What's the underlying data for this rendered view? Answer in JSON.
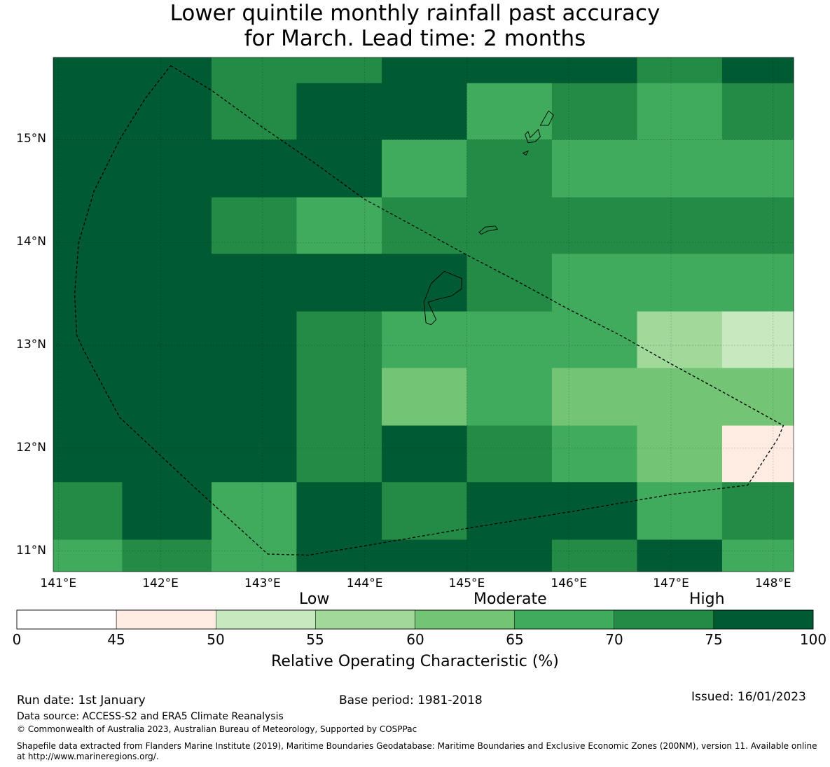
{
  "header": {
    "title_line1": "Lower quintile monthly rainfall past accuracy",
    "title_line2": "for March. Lead time: 2 months"
  },
  "map": {
    "lat_labels": [
      "15°N",
      "14°N",
      "13°N",
      "12°N",
      "11°N"
    ],
    "lon_labels": [
      "141°E",
      "142°E",
      "143°E",
      "144°E",
      "145°E",
      "146°E",
      "147°E",
      "148°E"
    ],
    "lat_values": [
      15,
      14,
      13,
      12,
      11
    ],
    "lon_values": [
      141,
      142,
      143,
      144,
      145,
      146,
      147,
      148
    ],
    "lon_range": [
      140.95,
      148.2
    ],
    "lat_range": [
      10.8,
      15.8
    ],
    "grid_lon_edges": [
      140.95,
      141.625,
      142.5,
      143.333,
      144.167,
      145.0,
      145.833,
      146.667,
      147.5,
      148.2
    ],
    "grid_lat_edges": [
      15.8,
      15.55,
      15.0,
      14.44,
      13.89,
      13.33,
      12.78,
      12.22,
      11.67,
      11.11,
      10.8
    ],
    "roc_category_rows": [
      [
        7,
        7,
        6,
        6,
        7,
        7,
        7,
        6,
        7
      ],
      [
        7,
        7,
        6,
        7,
        7,
        5,
        6,
        5,
        6
      ],
      [
        7,
        7,
        7,
        7,
        5,
        6,
        5,
        5,
        5
      ],
      [
        7,
        7,
        6,
        5,
        6,
        6,
        6,
        6,
        6
      ],
      [
        7,
        7,
        7,
        7,
        7,
        6,
        5,
        5,
        5
      ],
      [
        7,
        7,
        7,
        6,
        5,
        5,
        5,
        3,
        2
      ],
      [
        7,
        7,
        7,
        6,
        4,
        5,
        4,
        4,
        4
      ],
      [
        7,
        7,
        7,
        6,
        7,
        6,
        5,
        4,
        1
      ],
      [
        6,
        7,
        5,
        7,
        6,
        7,
        7,
        5,
        6
      ],
      [
        5,
        6,
        5,
        7,
        7,
        7,
        6,
        7,
        5
      ]
    ],
    "eez_boundary_lonlat": [
      [
        142.1,
        15.72
      ],
      [
        142.5,
        15.48
      ],
      [
        143.0,
        15.12
      ],
      [
        143.5,
        14.78
      ],
      [
        144.0,
        14.42
      ],
      [
        144.5,
        14.15
      ],
      [
        145.0,
        13.88
      ],
      [
        145.5,
        13.62
      ],
      [
        146.0,
        13.35
      ],
      [
        146.5,
        13.1
      ],
      [
        147.0,
        12.82
      ],
      [
        147.5,
        12.55
      ],
      [
        148.1,
        12.22
      ],
      [
        148.05,
        12.1
      ],
      [
        147.75,
        11.64
      ],
      [
        147.0,
        11.55
      ],
      [
        146.0,
        11.38
      ],
      [
        145.0,
        11.22
      ],
      [
        144.0,
        11.05
      ],
      [
        143.45,
        10.96
      ],
      [
        143.05,
        10.97
      ],
      [
        142.3,
        11.65
      ],
      [
        141.6,
        12.3
      ],
      [
        141.25,
        12.95
      ],
      [
        141.18,
        13.1
      ],
      [
        141.16,
        13.5
      ],
      [
        141.2,
        14.0
      ],
      [
        141.35,
        14.5
      ],
      [
        141.6,
        15.0
      ],
      [
        141.85,
        15.4
      ],
      [
        142.1,
        15.72
      ]
    ],
    "islands_lonlat": [
      [
        [
          144.65,
          13.6
        ],
        [
          144.78,
          13.72
        ],
        [
          144.95,
          13.65
        ],
        [
          144.95,
          13.55
        ],
        [
          144.85,
          13.48
        ],
        [
          144.72,
          13.45
        ],
        [
          144.62,
          13.42
        ],
        [
          144.7,
          13.25
        ],
        [
          144.65,
          13.2
        ],
        [
          144.6,
          13.22
        ],
        [
          144.58,
          13.42
        ],
        [
          144.65,
          13.6
        ]
      ],
      [
        [
          145.12,
          14.1
        ],
        [
          145.18,
          14.15
        ],
        [
          145.28,
          14.16
        ],
        [
          145.3,
          14.13
        ],
        [
          145.2,
          14.11
        ],
        [
          145.14,
          14.08
        ],
        [
          145.12,
          14.1
        ]
      ],
      [
        [
          145.62,
          15.02
        ],
        [
          145.7,
          15.1
        ],
        [
          145.72,
          15.03
        ],
        [
          145.67,
          14.98
        ],
        [
          145.6,
          14.97
        ],
        [
          145.57,
          15.05
        ],
        [
          145.6,
          15.08
        ],
        [
          145.62,
          15.02
        ]
      ],
      [
        [
          145.72,
          15.14
        ],
        [
          145.8,
          15.28
        ],
        [
          145.85,
          15.24
        ],
        [
          145.8,
          15.14
        ],
        [
          145.72,
          15.14
        ]
      ],
      [
        [
          145.55,
          14.87
        ],
        [
          145.6,
          14.89
        ],
        [
          145.58,
          14.85
        ],
        [
          145.55,
          14.87
        ]
      ]
    ]
  },
  "colorbar": {
    "category_labels": [
      "Low",
      "Moderate",
      "High"
    ],
    "ticks": [
      "0",
      "45",
      "50",
      "55",
      "60",
      "65",
      "70",
      "75",
      "100"
    ],
    "colors": [
      "#ffffff",
      "#feebe2",
      "#c7e9c0",
      "#a1d99b",
      "#74c476",
      "#41ab5d",
      "#238b45",
      "#005a32"
    ],
    "label": "Relative Operating Characteristic (%)"
  },
  "footer": {
    "run_date": "Run date: 1st January",
    "base_period": "Base period: 1981-2018",
    "issued": "Issued: 16/01/2023",
    "data_source": "Data source: ACCESS-S2 and ERA5 Climate Reanalysis",
    "copyright": "© Commonwealth of Australia 2023, Australian Bureau of Meteorology, Supported by COSPPac",
    "shapefile_line1": "Shapefile data extracted from Flanders Marine Institute (2019), Maritime Boundaries Geodatabase: Maritime Boundaries and Exclusive Economic Zones (200NM), version 11. Available online",
    "shapefile_line2": "at http://www.marineregions.org/."
  }
}
